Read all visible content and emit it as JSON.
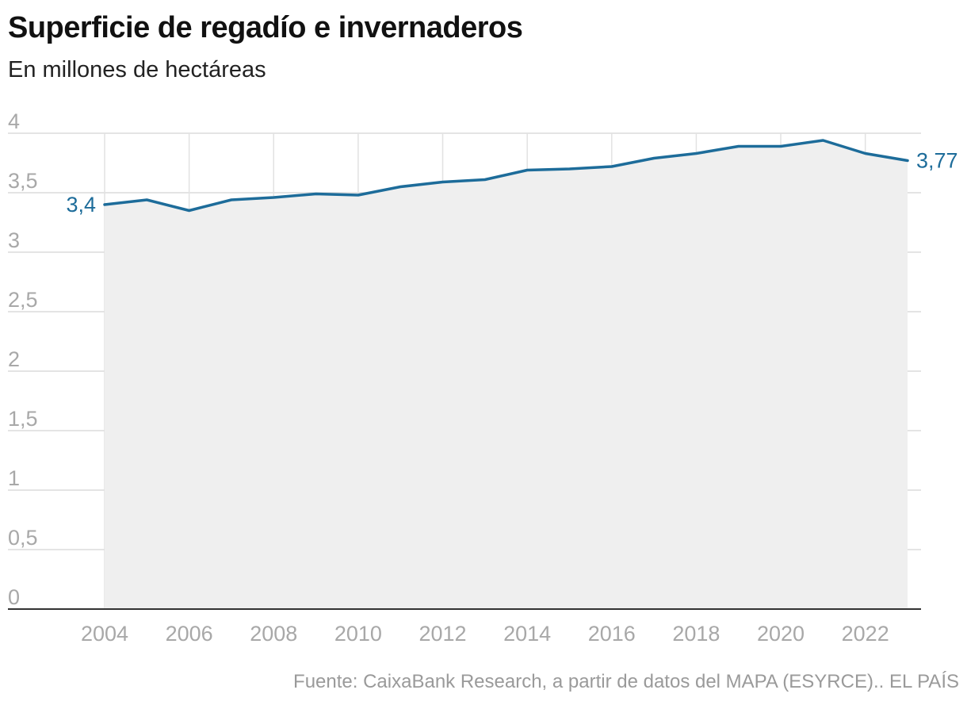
{
  "header": {
    "title": "Superficie de regadío e invernaderos",
    "subtitle": "En millones de hectáreas"
  },
  "footer": {
    "source": "Fuente: CaixaBank Research, a partir de datos del MAPA (ESYRCE).. EL PAÍS"
  },
  "colors": {
    "line": "#1d6c9a",
    "area": "#efefef"
  },
  "chart_data": {
    "type": "area",
    "title": "Superficie de regadío e invernaderos",
    "subtitle": "En millones de hectáreas",
    "xlabel": "",
    "ylabel": "",
    "x": [
      2004,
      2005,
      2006,
      2007,
      2008,
      2009,
      2010,
      2011,
      2012,
      2013,
      2014,
      2015,
      2016,
      2017,
      2018,
      2019,
      2020,
      2021,
      2022,
      2023
    ],
    "values": [
      3.4,
      3.44,
      3.35,
      3.44,
      3.46,
      3.49,
      3.48,
      3.55,
      3.59,
      3.61,
      3.69,
      3.7,
      3.72,
      3.79,
      3.83,
      3.89,
      3.89,
      3.94,
      3.83,
      3.77
    ],
    "ylim": [
      0,
      4
    ],
    "yticks": [
      {
        "value": 0,
        "label": "0"
      },
      {
        "value": 0.5,
        "label": "0,5"
      },
      {
        "value": 1,
        "label": "1"
      },
      {
        "value": 1.5,
        "label": "1,5"
      },
      {
        "value": 2,
        "label": "2"
      },
      {
        "value": 2.5,
        "label": "2,5"
      },
      {
        "value": 3,
        "label": "3"
      },
      {
        "value": 3.5,
        "label": "3,5"
      },
      {
        "value": 4,
        "label": "4"
      }
    ],
    "xticks": [
      {
        "value": 2004,
        "label": "2004"
      },
      {
        "value": 2006,
        "label": "2006"
      },
      {
        "value": 2008,
        "label": "2008"
      },
      {
        "value": 2010,
        "label": "2010"
      },
      {
        "value": 2012,
        "label": "2012"
      },
      {
        "value": 2014,
        "label": "2014"
      },
      {
        "value": 2016,
        "label": "2016"
      },
      {
        "value": 2018,
        "label": "2018"
      },
      {
        "value": 2020,
        "label": "2020"
      },
      {
        "value": 2022,
        "label": "2022"
      }
    ],
    "annotations": [
      {
        "x": 2004,
        "y": 3.4,
        "label": "3,4",
        "side": "left"
      },
      {
        "x": 2023,
        "y": 3.77,
        "label": "3,77",
        "side": "right"
      }
    ],
    "grid": true
  }
}
